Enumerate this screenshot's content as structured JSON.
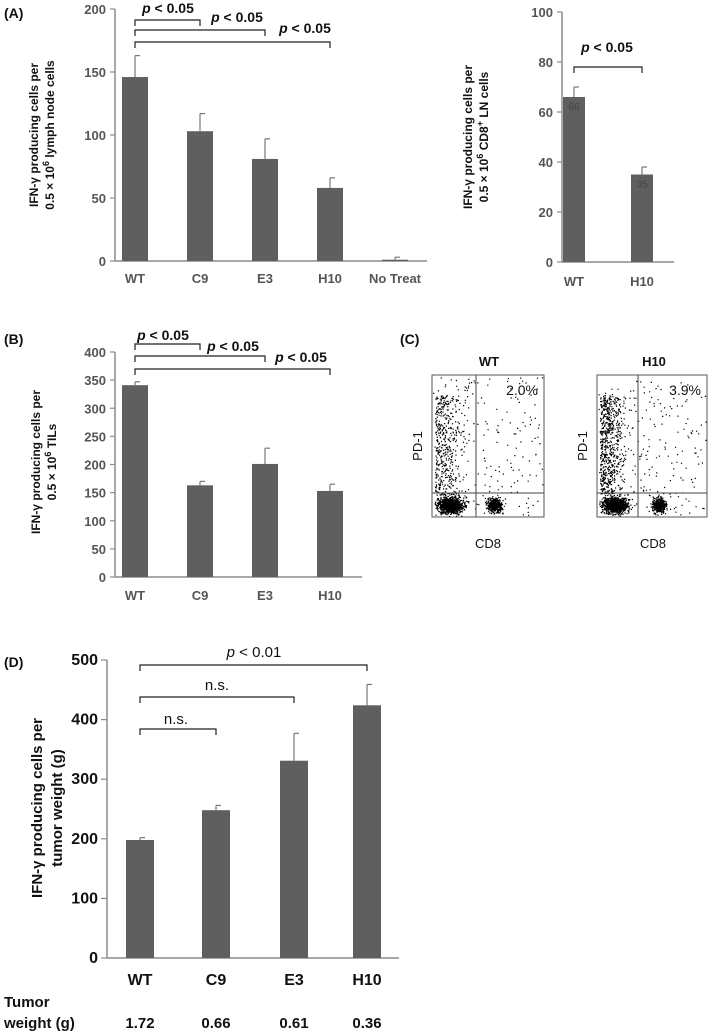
{
  "colors": {
    "bar": "#5f5f5f",
    "axis": "#8c8c8c",
    "text": "#111111",
    "dot": "#000000"
  },
  "panels": {
    "A": "(A)",
    "B": "(B)",
    "C": "(C)",
    "D": "(D)"
  },
  "chart_data": [
    {
      "id": "A_left",
      "type": "bar",
      "panel": "(A)",
      "ylabel": [
        "IFN-γ producing cells per",
        "0.5 × 10",
        "6",
        " lymph node cells"
      ],
      "categories": [
        "WT",
        "C9",
        "E3",
        "H10",
        "No Treat"
      ],
      "values": [
        146,
        103,
        81,
        58,
        1
      ],
      "errors": [
        17,
        14,
        16,
        8,
        2
      ],
      "ylim": [
        0,
        200
      ],
      "yticks": [
        0,
        50,
        100,
        150,
        200
      ],
      "significance": [
        {
          "from": 0,
          "to": 1,
          "label": "p < 0.05"
        },
        {
          "from": 0,
          "to": 2,
          "label": "p < 0.05"
        },
        {
          "from": 0,
          "to": 3,
          "label": "p < 0.05"
        }
      ]
    },
    {
      "id": "A_right",
      "type": "bar",
      "panel": "",
      "ylabel": [
        "IFN-γ producing cells per",
        "0.5 × 10",
        "6",
        " CD8",
        "+",
        " LN cells"
      ],
      "categories": [
        "WT",
        "H10"
      ],
      "values": [
        66,
        35
      ],
      "errors": [
        4,
        3
      ],
      "data_labels": [
        "66",
        "35"
      ],
      "ylim": [
        0,
        100
      ],
      "yticks": [
        0,
        20,
        40,
        60,
        80,
        100
      ],
      "significance": [
        {
          "from": 0,
          "to": 1,
          "label": "p < 0.05"
        }
      ]
    },
    {
      "id": "B",
      "type": "bar",
      "panel": "(B)",
      "ylabel": [
        "IFN-γ producing cells per",
        "0.5 × 10",
        "6",
        " TILs"
      ],
      "categories": [
        "WT",
        "C9",
        "E3",
        "H10"
      ],
      "values": [
        341,
        163,
        201,
        153
      ],
      "errors": [
        6,
        7,
        28,
        12
      ],
      "ylim": [
        0,
        400
      ],
      "yticks": [
        0,
        50,
        100,
        150,
        200,
        250,
        300,
        350,
        400
      ],
      "significance": [
        {
          "from": 0,
          "to": 1,
          "label": "p < 0.05"
        },
        {
          "from": 0,
          "to": 2,
          "label": "p < 0.05"
        },
        {
          "from": 0,
          "to": 3,
          "label": "p < 0.05"
        }
      ]
    },
    {
      "id": "D",
      "type": "bar",
      "panel": "(D)",
      "ylabel": [
        "IFN-γ producing cells per",
        "tumor weight (g)"
      ],
      "categories": [
        "WT",
        "C9",
        "E3",
        "H10"
      ],
      "values": [
        198,
        248,
        331,
        424
      ],
      "errors": [
        4,
        8,
        46,
        35
      ],
      "ylim": [
        0,
        500
      ],
      "yticks": [
        0,
        100,
        200,
        300,
        400,
        500
      ],
      "significance": [
        {
          "from": 0,
          "to": 1,
          "label": "n.s."
        },
        {
          "from": 0,
          "to": 2,
          "label": "n.s."
        },
        {
          "from": 0,
          "to": 3,
          "label": "p < 0.01"
        }
      ],
      "tumor_weight": {
        "label_line1": "Tumor",
        "label_line2": "weight (g)",
        "values": [
          "1.72",
          "0.66",
          "0.61",
          "0.36"
        ]
      }
    }
  ],
  "facs": {
    "panels": [
      {
        "title": "WT",
        "percent": "2.0%",
        "xlabel": "CD8",
        "ylabel": "PD-1"
      },
      {
        "title": "H10",
        "percent": "3.9%",
        "xlabel": "CD8",
        "ylabel": "PD-1"
      }
    ]
  }
}
